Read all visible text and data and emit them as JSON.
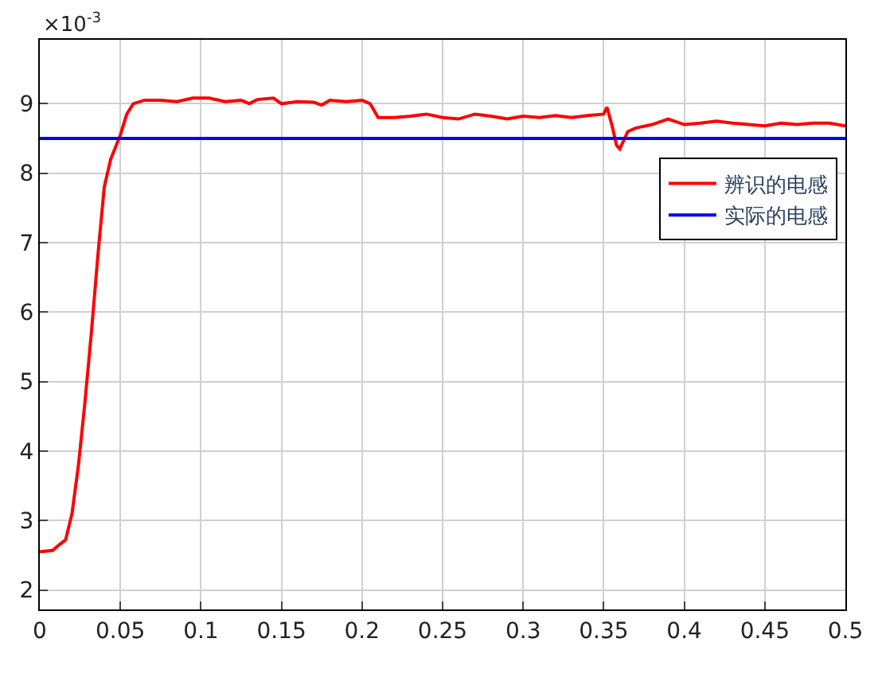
{
  "chart_data": {
    "type": "line",
    "annotations": [
      "×10$^{-3}$"
    ],
    "xlim": [
      0,
      0.5
    ],
    "xticks": [
      0,
      0.05,
      0.1,
      0.15,
      0.2,
      0.25,
      0.3,
      0.35,
      0.4,
      0.45,
      0.5
    ],
    "ylim": [
      1.72,
      9.92
    ],
    "yticks": [
      2,
      3,
      4,
      5,
      6,
      7,
      8,
      9
    ],
    "grid": true,
    "legend": "right",
    "line_style": "solid",
    "marker": "none",
    "series": [
      {
        "name": "辨识的电感",
        "color": "#ff0000",
        "x": [
          0,
          0.008,
          0.012,
          0.016,
          0.02,
          0.024,
          0.028,
          0.032,
          0.036,
          0.04,
          0.044,
          0.05,
          0.054,
          0.058,
          0.065,
          0.075,
          0.085,
          0.095,
          0.105,
          0.115,
          0.125,
          0.13,
          0.135,
          0.145,
          0.15,
          0.16,
          0.17,
          0.175,
          0.18,
          0.19,
          0.2,
          0.205,
          0.21,
          0.22,
          0.23,
          0.24,
          0.25,
          0.26,
          0.27,
          0.28,
          0.29,
          0.3,
          0.31,
          0.32,
          0.33,
          0.34,
          0.35,
          0.352,
          0.355,
          0.358,
          0.36,
          0.365,
          0.37,
          0.38,
          0.39,
          0.4,
          0.41,
          0.42,
          0.43,
          0.44,
          0.45,
          0.46,
          0.47,
          0.48,
          0.49,
          0.5
        ],
        "values": [
          2.55,
          2.57,
          2.65,
          2.72,
          3.1,
          3.8,
          4.7,
          5.7,
          6.8,
          7.8,
          8.2,
          8.55,
          8.85,
          9.0,
          9.05,
          9.05,
          9.03,
          9.08,
          9.08,
          9.03,
          9.05,
          9.0,
          9.06,
          9.08,
          9.0,
          9.03,
          9.02,
          8.98,
          9.05,
          9.03,
          9.05,
          9.0,
          8.8,
          8.8,
          8.82,
          8.85,
          8.8,
          8.78,
          8.85,
          8.82,
          8.78,
          8.82,
          8.8,
          8.83,
          8.8,
          8.83,
          8.85,
          8.95,
          8.7,
          8.4,
          8.35,
          8.6,
          8.65,
          8.7,
          8.78,
          8.7,
          8.72,
          8.75,
          8.72,
          8.7,
          8.68,
          8.72,
          8.7,
          8.72,
          8.72,
          8.68
        ]
      },
      {
        "name": "实际的电感",
        "color": "#0000ff",
        "x": [
          0,
          0.5
        ],
        "values": [
          8.5,
          8.5
        ]
      }
    ]
  }
}
